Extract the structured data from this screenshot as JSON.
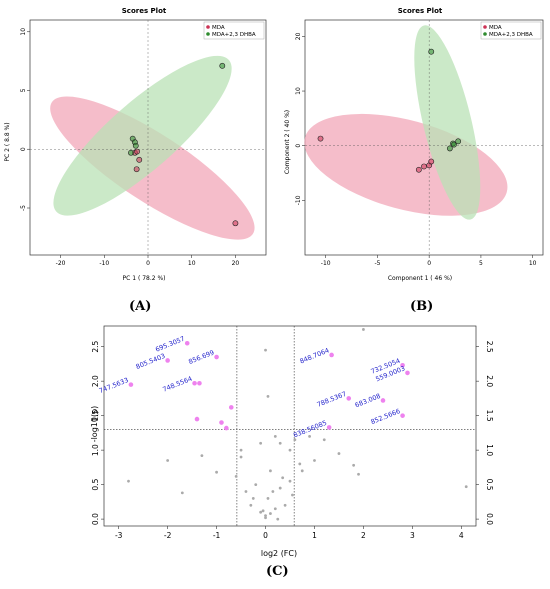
{
  "colors": {
    "mda": "#cc3355",
    "mda_fill": "#f2a7b8",
    "dhba": "#2e8b2e",
    "dhba_fill": "#b9e2b5",
    "sig": "#ee82ee",
    "nonsig": "#aaaaaa",
    "label": "#2222cc"
  },
  "panel_labels": {
    "a": "(A)",
    "b": "(B)",
    "c": "(C)"
  },
  "chart_data": [
    {
      "type": "scatter",
      "title": "Scores Plot",
      "xlabel": "PC 1 ( 78.2 %)",
      "ylabel": "PC 2 ( 8.8 %)",
      "xlim": [
        -27,
        27
      ],
      "ylim": [
        -9,
        11
      ],
      "xticks": [
        -20,
        -10,
        0,
        10,
        20
      ],
      "yticks": [
        -5,
        0,
        5,
        10
      ],
      "legend": [
        "MDA",
        "MDA+2,3 DHBA"
      ],
      "legend_position": "top-right",
      "series": [
        {
          "name": "MDA",
          "points": [
            [
              -3,
              -0.3
            ],
            [
              -2.5,
              -0.2
            ],
            [
              -2,
              -0.9
            ],
            [
              -2.6,
              -1.7
            ],
            [
              20,
              -6.3
            ]
          ]
        },
        {
          "name": "MDA+2,3 DHBA",
          "points": [
            [
              -3.5,
              0.9
            ],
            [
              -3,
              0.6
            ],
            [
              -2.8,
              0.3
            ],
            [
              -3.9,
              -0.3
            ],
            [
              17,
              7.1
            ]
          ]
        }
      ],
      "ellipses": [
        {
          "series": "MDA",
          "ends": [
            [
              -22,
              4
            ],
            [
              24,
              -7.2
            ]
          ],
          "half_width": 1.3
        },
        {
          "series": "MDA+2,3 DHBA",
          "ends": [
            [
              -21,
              -5.3
            ],
            [
              18.5,
              7.6
            ]
          ],
          "half_width": 1.3
        }
      ]
    },
    {
      "type": "scatter",
      "title": "Scores Plot",
      "xlabel": "Component 1 ( 46 %)",
      "ylabel": "Component 2 ( 40 %)",
      "xlim": [
        -12,
        11
      ],
      "ylim": [
        -20,
        23
      ],
      "xticks": [
        -10,
        -5,
        0,
        5,
        10
      ],
      "yticks": [
        -10,
        0,
        10,
        20
      ],
      "legend": [
        "MDA",
        "MDA+2,3 DHBA"
      ],
      "legend_position": "top-right",
      "series": [
        {
          "name": "MDA",
          "points": [
            [
              -10.5,
              1.3
            ],
            [
              -1,
              -4.4
            ],
            [
              -0.5,
              -3.8
            ],
            [
              0,
              -3.6
            ],
            [
              0.2,
              -2.9
            ]
          ]
        },
        {
          "name": "MDA+2,3 DHBA",
          "points": [
            [
              0.2,
              17.2
            ],
            [
              2,
              -0.5
            ],
            [
              2.3,
              0.4
            ],
            [
              2.8,
              0.8
            ],
            [
              2.4,
              0.2
            ]
          ]
        }
      ],
      "ellipses": [
        {
          "series": "MDA",
          "ends": [
            [
              -12,
              1.5
            ],
            [
              7.5,
              -8.5
            ]
          ],
          "half_width": 3.7
        },
        {
          "series": "MDA+2,3 DHBA",
          "ends": [
            [
              -0.5,
              22
            ],
            [
              4,
              -13.5
            ]
          ],
          "half_width": 2
        }
      ]
    },
    {
      "type": "scatter",
      "title": "",
      "xlabel": "log2 (FC)",
      "ylabel": "-log10(p)",
      "xlim": [
        -3.3,
        4.3
      ],
      "ylim": [
        -0.1,
        2.8
      ],
      "xticks": [
        -3,
        -2,
        -1,
        0,
        1,
        2,
        3,
        4
      ],
      "yticks": [
        0.0,
        0.5,
        1.0,
        1.5,
        2.0,
        2.5
      ],
      "thresholds": {
        "fc": [
          -0.585,
          0.585
        ],
        "p": 1.3
      },
      "significant": [
        {
          "label": "695.3057",
          "x": -1.6,
          "y": 2.55
        },
        {
          "label": "856.699",
          "x": -1.0,
          "y": 2.35
        },
        {
          "label": "805.5403",
          "x": -2.0,
          "y": 2.3
        },
        {
          "label": "748.5564",
          "x": -1.45,
          "y": 1.97
        },
        {
          "label": "",
          "x": -1.35,
          "y": 1.97
        },
        {
          "label": "747.5633",
          "x": -2.75,
          "y": 1.95
        },
        {
          "label": "",
          "x": -1.4,
          "y": 1.45
        },
        {
          "label": "",
          "x": -0.7,
          "y": 1.62
        },
        {
          "label": "",
          "x": -0.9,
          "y": 1.4
        },
        {
          "label": "",
          "x": -0.8,
          "y": 1.32
        },
        {
          "label": "848.7064",
          "x": 1.35,
          "y": 2.38
        },
        {
          "label": "732.5054",
          "x": 2.8,
          "y": 2.23
        },
        {
          "label": "559.0003",
          "x": 2.9,
          "y": 2.12
        },
        {
          "label": "788.5367",
          "x": 1.7,
          "y": 1.75
        },
        {
          "label": "683.008",
          "x": 2.4,
          "y": 1.72
        },
        {
          "label": "852.5666",
          "x": 2.8,
          "y": 1.5
        },
        {
          "label": "838.56085",
          "x": 1.3,
          "y": 1.33
        }
      ],
      "nonsignificant": [
        [
          -2.8,
          0.55
        ],
        [
          -2.0,
          0.85
        ],
        [
          -1.7,
          0.38
        ],
        [
          -1.3,
          0.92
        ],
        [
          -1.0,
          0.68
        ],
        [
          -0.6,
          0.62
        ],
        [
          -0.4,
          0.4
        ],
        [
          -0.3,
          0.2
        ],
        [
          -0.2,
          0.5
        ],
        [
          -0.1,
          0.1
        ],
        [
          0,
          0.05
        ],
        [
          0.05,
          0.3
        ],
        [
          0.1,
          0.7
        ],
        [
          0.2,
          0.15
        ],
        [
          0.3,
          0.45
        ],
        [
          0.35,
          0.6
        ],
        [
          0.5,
          0.55
        ],
        [
          0.4,
          0.2
        ],
        [
          0.15,
          0.4
        ],
        [
          0.25,
          0.0
        ],
        [
          0.0,
          0.02
        ],
        [
          -0.05,
          0.12
        ],
        [
          0.1,
          0.08
        ],
        [
          0.2,
          1.2
        ],
        [
          -0.1,
          1.1
        ],
        [
          0.5,
          1.0
        ],
        [
          0.7,
          0.8
        ],
        [
          1.0,
          0.85
        ],
        [
          1.2,
          1.15
        ],
        [
          1.5,
          0.95
        ],
        [
          1.8,
          0.78
        ],
        [
          0.6,
          1.15
        ],
        [
          -0.5,
          1.0
        ],
        [
          0.55,
          0.35
        ],
        [
          -0.25,
          0.3
        ],
        [
          0.3,
          1.1
        ],
        [
          0.0,
          2.45
        ],
        [
          0.05,
          1.78
        ],
        [
          -0.5,
          0.9
        ],
        [
          0.75,
          0.7
        ],
        [
          1.9,
          0.65
        ],
        [
          4.1,
          0.47
        ],
        [
          2.0,
          2.75
        ],
        [
          0.9,
          1.2
        ]
      ]
    }
  ]
}
